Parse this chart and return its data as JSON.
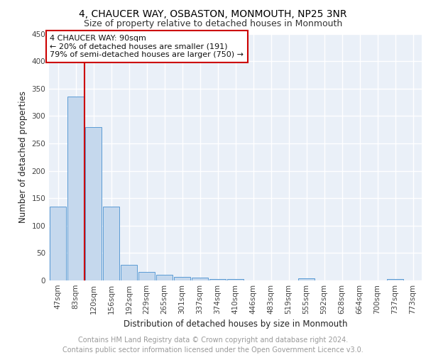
{
  "title": "4, CHAUCER WAY, OSBASTON, MONMOUTH, NP25 3NR",
  "subtitle": "Size of property relative to detached houses in Monmouth",
  "xlabel": "Distribution of detached houses by size in Monmouth",
  "ylabel": "Number of detached properties",
  "categories": [
    "47sqm",
    "83sqm",
    "120sqm",
    "156sqm",
    "192sqm",
    "229sqm",
    "265sqm",
    "301sqm",
    "337sqm",
    "374sqm",
    "410sqm",
    "446sqm",
    "483sqm",
    "519sqm",
    "555sqm",
    "592sqm",
    "628sqm",
    "664sqm",
    "700sqm",
    "737sqm",
    "773sqm"
  ],
  "values": [
    135,
    335,
    280,
    135,
    28,
    16,
    11,
    6,
    5,
    3,
    3,
    0,
    0,
    0,
    4,
    0,
    0,
    0,
    0,
    3,
    0
  ],
  "bar_color": "#c5d8ed",
  "bar_edge_color": "#5b9bd5",
  "annotation_text": "4 CHAUCER WAY: 90sqm\n← 20% of detached houses are smaller (191)\n79% of semi-detached houses are larger (750) →",
  "annotation_box_color": "#ffffff",
  "annotation_box_edge_color": "#cc0000",
  "red_line_x": 1.5,
  "ylim": [
    0,
    450
  ],
  "yticks": [
    0,
    50,
    100,
    150,
    200,
    250,
    300,
    350,
    400,
    450
  ],
  "footer_text": "Contains HM Land Registry data © Crown copyright and database right 2024.\nContains public sector information licensed under the Open Government Licence v3.0.",
  "bg_color": "#eaf0f8",
  "grid_color": "#ffffff",
  "title_fontsize": 10,
  "subtitle_fontsize": 9,
  "xlabel_fontsize": 8.5,
  "ylabel_fontsize": 8.5,
  "annotation_fontsize": 8,
  "footer_fontsize": 7,
  "tick_fontsize": 7.5
}
